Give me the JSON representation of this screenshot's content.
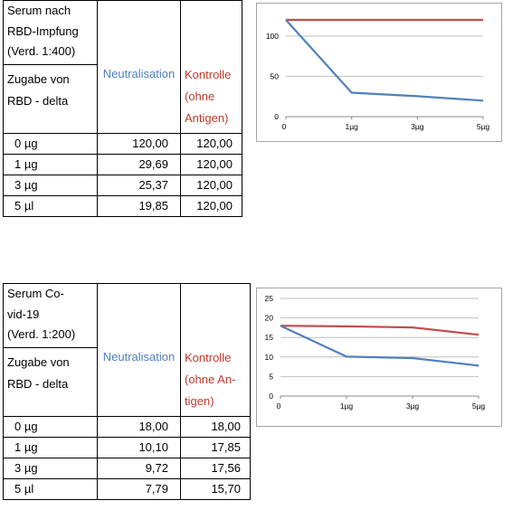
{
  "blocks": [
    {
      "header_lines": [
        "Serum nach",
        "RBD-Impfung",
        "(Verd. 1:400)"
      ],
      "row_header_lines": [
        "Zugabe von",
        "RBD - delta"
      ],
      "col_neutralisation": "Neutralisation",
      "col_kontrolle_lines": [
        "Kontrolle",
        "(ohne",
        "Antigen)"
      ],
      "rows": [
        {
          "label": "0 µg",
          "neut": "120,00",
          "kontr": "120,00"
        },
        {
          "label": "1 µg",
          "neut": "29,69",
          "kontr": "120,00"
        },
        {
          "label": "3 µg",
          "neut": "25,37",
          "kontr": "120,00"
        },
        {
          "label": "5 µl",
          "neut": "19,85",
          "kontr": "120,00"
        }
      ]
    },
    {
      "header_lines": [
        "Serum  Co-",
        "vid-19",
        "(Verd. 1:200)"
      ],
      "row_header_lines": [
        "Zugabe von",
        "RBD - delta"
      ],
      "col_neutralisation": "Neutralisation",
      "col_kontrolle_lines": [
        "Kontrolle",
        "(ohne An-",
        "tigen)"
      ],
      "rows": [
        {
          "label": "0 µg",
          "neut": "18,00",
          "kontr": "18,00"
        },
        {
          "label": "1 µg",
          "neut": "10,10",
          "kontr": "17,85"
        },
        {
          "label": "3 µg",
          "neut": "9,72",
          "kontr": "17,56"
        },
        {
          "label": "5 µl",
          "neut": "7,79",
          "kontr": "15,70"
        }
      ]
    }
  ],
  "chart_data": [
    {
      "type": "line",
      "categories": [
        "0",
        "1µg",
        "3µg",
        "5µg"
      ],
      "ylim": [
        0,
        120
      ],
      "yticks": [
        0,
        50,
        100
      ],
      "grid": true,
      "colors": {
        "neut": "#4f81bd",
        "kontr": "#c0504d"
      },
      "series": [
        {
          "values": [
            120.0,
            29.69,
            25.37,
            19.85
          ]
        },
        {
          "values": [
            120.0,
            120.0,
            120.0,
            120.0
          ]
        }
      ]
    },
    {
      "type": "line",
      "categories": [
        "0",
        "1µg",
        "3µg",
        "5µg"
      ],
      "ylim": [
        0,
        25
      ],
      "yticks": [
        0,
        5,
        10,
        15,
        20,
        25
      ],
      "grid": true,
      "colors": {
        "neut": "#4f81bd",
        "kontr": "#c0504d"
      },
      "series": [
        {
          "values": [
            18.0,
            10.1,
            9.72,
            7.79
          ]
        },
        {
          "values": [
            18.0,
            17.85,
            17.56,
            15.7
          ]
        }
      ]
    }
  ]
}
